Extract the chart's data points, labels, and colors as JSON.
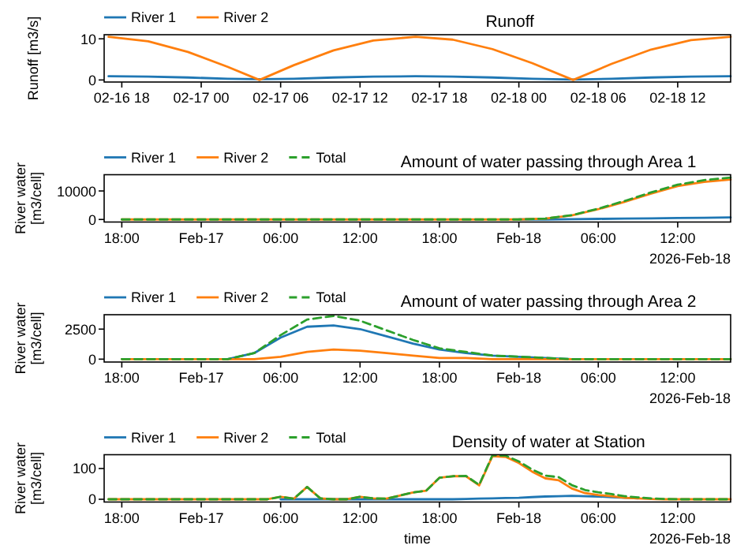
{
  "chart_data": [
    {
      "type": "line",
      "title": "Runoff",
      "ylabel": "Runoff  [m3/s]",
      "legend": "top left",
      "grid": false,
      "x": [
        "2026-02-16T17:00",
        "2026-02-16T20:00",
        "2026-02-16T23:00",
        "2026-02-17T02:00",
        "2026-02-17T04:24",
        "2026-02-17T07:00",
        "2026-02-17T10:00",
        "2026-02-17T13:00",
        "2026-02-17T16:12",
        "2026-02-17T19:00",
        "2026-02-17T22:00",
        "2026-02-18T01:00",
        "2026-02-18T04:06",
        "2026-02-18T07:00",
        "2026-02-18T10:00",
        "2026-02-18T13:00",
        "2026-02-18T16:00"
      ],
      "series": [
        {
          "name": "River 1",
          "color": "#1f77b4",
          "values": [
            0.9,
            0.8,
            0.6,
            0.3,
            0.2,
            0.3,
            0.6,
            0.8,
            0.9,
            0.8,
            0.6,
            0.3,
            0.1,
            0.3,
            0.6,
            0.8,
            0.9
          ]
        },
        {
          "name": "River 2",
          "color": "#ff7f0e",
          "values": [
            10.5,
            9.4,
            6.8,
            3.2,
            0,
            3.6,
            7.2,
            9.6,
            10.5,
            9.8,
            7.5,
            4.1,
            0,
            3.9,
            7.4,
            9.7,
            10.5
          ]
        }
      ],
      "xlim": [
        "2026-02-16T16:40",
        "2026-02-18T16:00"
      ],
      "ylim": [
        -0.5,
        11
      ],
      "yticks": [
        0,
        10
      ],
      "xticks": [
        {
          "value": "2026-02-16T18:00",
          "label": "02-16 18"
        },
        {
          "value": "2026-02-17T00:00",
          "label": "02-17 00"
        },
        {
          "value": "2026-02-17T06:00",
          "label": "02-17 06"
        },
        {
          "value": "2026-02-17T12:00",
          "label": "02-17 12"
        },
        {
          "value": "2026-02-17T18:00",
          "label": "02-17 18"
        },
        {
          "value": "2026-02-18T00:00",
          "label": "02-18 00"
        },
        {
          "value": "2026-02-18T06:00",
          "label": "02-18 06"
        },
        {
          "value": "2026-02-18T12:00",
          "label": "02-18 12"
        }
      ]
    },
    {
      "type": "line",
      "title": "Amount of water passing through Area 1",
      "ylabel": "River water [m3/cell]",
      "legend": "top left",
      "grid": false,
      "annotations": [
        "2026-Feb-18"
      ],
      "x": [
        "2026-02-16T18:00",
        "2026-02-16T20:00",
        "2026-02-16T22:00",
        "2026-02-17T00:00",
        "2026-02-17T02:00",
        "2026-02-17T04:00",
        "2026-02-17T06:00",
        "2026-02-17T08:00",
        "2026-02-17T10:00",
        "2026-02-17T12:00",
        "2026-02-17T14:00",
        "2026-02-17T16:00",
        "2026-02-17T18:00",
        "2026-02-17T20:00",
        "2026-02-17T22:00",
        "2026-02-18T00:00",
        "2026-02-18T02:00",
        "2026-02-18T04:00",
        "2026-02-18T06:00",
        "2026-02-18T08:00",
        "2026-02-18T10:00",
        "2026-02-18T12:00",
        "2026-02-18T14:00",
        "2026-02-18T16:00"
      ],
      "series": [
        {
          "name": "River 1",
          "color": "#1f77b4",
          "values": [
            null,
            null,
            null,
            null,
            null,
            null,
            null,
            null,
            null,
            null,
            null,
            null,
            null,
            null,
            null,
            0,
            0,
            100,
            200,
            300,
            400,
            500,
            600,
            700
          ]
        },
        {
          "name": "River 2",
          "color": "#ff7f0e",
          "values": [
            0,
            0,
            0,
            0,
            0,
            0,
            0,
            0,
            0,
            0,
            0,
            0,
            0,
            0,
            0,
            0,
            300,
            1400,
            3600,
            6200,
            9100,
            11700,
            13200,
            14000
          ]
        },
        {
          "name": "Total",
          "color": "#2ca02c",
          "line_style": "dashed",
          "values": [
            0,
            0,
            0,
            0,
            0,
            0,
            0,
            0,
            0,
            0,
            0,
            0,
            0,
            0,
            0,
            0,
            300,
            1500,
            3800,
            6500,
            9500,
            12200,
            13800,
            14700
          ]
        }
      ],
      "xlim": [
        "2026-02-16T16:40",
        "2026-02-18T16:00"
      ],
      "ylim": [
        -900,
        15700
      ],
      "yticks": [
        0,
        10000
      ],
      "xticks": [
        {
          "value": "2026-02-16T18:00",
          "label": "18:00"
        },
        {
          "value": "2026-02-17T00:00",
          "label": "Feb-17"
        },
        {
          "value": "2026-02-17T06:00",
          "label": "06:00"
        },
        {
          "value": "2026-02-17T12:00",
          "label": "12:00"
        },
        {
          "value": "2026-02-17T18:00",
          "label": "18:00"
        },
        {
          "value": "2026-02-18T00:00",
          "label": "Feb-18"
        },
        {
          "value": "2026-02-18T06:00",
          "label": "06:00"
        },
        {
          "value": "2026-02-18T12:00",
          "label": "12:00"
        }
      ]
    },
    {
      "type": "line",
      "title": "Amount of water passing through Area 2",
      "ylabel": "River water [m3/cell]",
      "legend": "top left",
      "grid": false,
      "annotations": [
        "2026-Feb-18"
      ],
      "x": [
        "2026-02-16T18:00",
        "2026-02-16T20:00",
        "2026-02-16T22:00",
        "2026-02-17T00:00",
        "2026-02-17T02:00",
        "2026-02-17T04:00",
        "2026-02-17T06:00",
        "2026-02-17T08:00",
        "2026-02-17T10:00",
        "2026-02-17T12:00",
        "2026-02-17T14:00",
        "2026-02-17T16:00",
        "2026-02-17T18:00",
        "2026-02-17T20:00",
        "2026-02-17T22:00",
        "2026-02-18T00:00",
        "2026-02-18T02:00",
        "2026-02-18T04:00",
        "2026-02-18T06:00",
        "2026-02-18T08:00",
        "2026-02-18T10:00",
        "2026-02-18T12:00",
        "2026-02-18T14:00",
        "2026-02-18T16:00"
      ],
      "series": [
        {
          "name": "River 1",
          "color": "#1f77b4",
          "values": [
            null,
            null,
            null,
            null,
            0,
            500,
            1800,
            2700,
            2800,
            2500,
            1900,
            1300,
            800,
            500,
            300,
            200,
            100,
            0,
            null,
            null,
            null,
            null,
            null,
            null
          ]
        },
        {
          "name": "River 2",
          "color": "#ff7f0e",
          "values": [
            0,
            0,
            0,
            0,
            0,
            0,
            200,
            600,
            800,
            700,
            500,
            300,
            100,
            100,
            0,
            0,
            0,
            0,
            0,
            0,
            0,
            0,
            0,
            0
          ]
        },
        {
          "name": "Total",
          "color": "#2ca02c",
          "line_style": "dashed",
          "values": [
            0,
            0,
            0,
            0,
            0,
            500,
            2000,
            3300,
            3600,
            3200,
            2400,
            1600,
            900,
            600,
            300,
            200,
            100,
            0,
            0,
            0,
            0,
            0,
            0,
            0
          ]
        }
      ],
      "xlim": [
        "2026-02-16T16:40",
        "2026-02-18T16:00"
      ],
      "ylim": [
        -240,
        3700
      ],
      "yticks": [
        0,
        2500
      ],
      "xticks": [
        {
          "value": "2026-02-16T18:00",
          "label": "18:00"
        },
        {
          "value": "2026-02-17T00:00",
          "label": "Feb-17"
        },
        {
          "value": "2026-02-17T06:00",
          "label": "06:00"
        },
        {
          "value": "2026-02-17T12:00",
          "label": "12:00"
        },
        {
          "value": "2026-02-17T18:00",
          "label": "18:00"
        },
        {
          "value": "2026-02-18T00:00",
          "label": "Feb-18"
        },
        {
          "value": "2026-02-18T06:00",
          "label": "06:00"
        },
        {
          "value": "2026-02-18T12:00",
          "label": "12:00"
        }
      ]
    },
    {
      "type": "line",
      "title": "Density of water at Station",
      "xlabel": "time",
      "ylabel": "River water [m3/cell]",
      "legend": "top left",
      "grid": false,
      "annotations": [
        "2026-Feb-18"
      ],
      "x": [
        "2026-02-16T17:00",
        "2026-02-16T18:00",
        "2026-02-16T19:00",
        "2026-02-16T20:00",
        "2026-02-16T21:00",
        "2026-02-16T22:00",
        "2026-02-16T23:00",
        "2026-02-17T00:00",
        "2026-02-17T01:00",
        "2026-02-17T02:00",
        "2026-02-17T03:00",
        "2026-02-17T04:00",
        "2026-02-17T05:00",
        "2026-02-17T06:00",
        "2026-02-17T07:00",
        "2026-02-17T08:00",
        "2026-02-17T09:00",
        "2026-02-17T10:00",
        "2026-02-17T11:00",
        "2026-02-17T12:00",
        "2026-02-17T13:00",
        "2026-02-17T14:00",
        "2026-02-17T15:00",
        "2026-02-17T16:00",
        "2026-02-17T17:00",
        "2026-02-17T18:00",
        "2026-02-17T19:00",
        "2026-02-17T20:00",
        "2026-02-17T21:00",
        "2026-02-17T22:00",
        "2026-02-17T23:00",
        "2026-02-18T00:00",
        "2026-02-18T01:00",
        "2026-02-18T02:00",
        "2026-02-18T03:00",
        "2026-02-18T04:00",
        "2026-02-18T05:00",
        "2026-02-18T06:00",
        "2026-02-18T07:00",
        "2026-02-18T08:00",
        "2026-02-18T09:00",
        "2026-02-18T10:00",
        "2026-02-18T11:00",
        "2026-02-18T12:00",
        "2026-02-18T13:00",
        "2026-02-18T14:00",
        "2026-02-18T15:00",
        "2026-02-18T16:00"
      ],
      "series": [
        {
          "name": "River 1",
          "color": "#1f77b4",
          "values": [
            null,
            null,
            null,
            null,
            null,
            null,
            null,
            null,
            null,
            null,
            null,
            null,
            null,
            0,
            0,
            0,
            0,
            0,
            0,
            0,
            0,
            0,
            0,
            0,
            0,
            0,
            0,
            1,
            2,
            3,
            4,
            5,
            7,
            9,
            10,
            11,
            10,
            9,
            7,
            5,
            3,
            null,
            null,
            null,
            null,
            null,
            null,
            null
          ]
        },
        {
          "name": "River 2",
          "color": "#ff7f0e",
          "values": [
            0,
            0,
            0,
            0,
            0,
            0,
            0,
            0,
            0,
            0,
            0,
            0,
            0,
            8,
            2,
            40,
            3,
            0,
            0,
            8,
            3,
            2,
            12,
            22,
            28,
            70,
            75,
            75,
            45,
            140,
            138,
            118,
            90,
            68,
            62,
            35,
            20,
            14,
            10,
            5,
            3,
            1,
            0,
            0,
            0,
            0,
            0,
            0
          ]
        },
        {
          "name": "Total",
          "color": "#2ca02c",
          "line_style": "dashed",
          "values": [
            0,
            0,
            0,
            0,
            0,
            0,
            0,
            0,
            0,
            0,
            0,
            0,
            0,
            8,
            2,
            40,
            3,
            0,
            0,
            8,
            3,
            2,
            12,
            22,
            28,
            70,
            75,
            76,
            47,
            143,
            142,
            123,
            97,
            77,
            72,
            46,
            30,
            23,
            17,
            10,
            6,
            3,
            1,
            0,
            0,
            0,
            0,
            0
          ]
        }
      ],
      "xlim": [
        "2026-02-16T16:40",
        "2026-02-18T16:00"
      ],
      "ylim": [
        -9,
        145
      ],
      "yticks": [
        0,
        100
      ],
      "xticks": [
        {
          "value": "2026-02-16T18:00",
          "label": "18:00"
        },
        {
          "value": "2026-02-17T00:00",
          "label": "Feb-17"
        },
        {
          "value": "2026-02-17T06:00",
          "label": "06:00"
        },
        {
          "value": "2026-02-17T12:00",
          "label": "12:00"
        },
        {
          "value": "2026-02-17T18:00",
          "label": "18:00"
        },
        {
          "value": "2026-02-18T00:00",
          "label": "Feb-18"
        },
        {
          "value": "2026-02-18T06:00",
          "label": "06:00"
        },
        {
          "value": "2026-02-18T12:00",
          "label": "12:00"
        }
      ]
    }
  ]
}
